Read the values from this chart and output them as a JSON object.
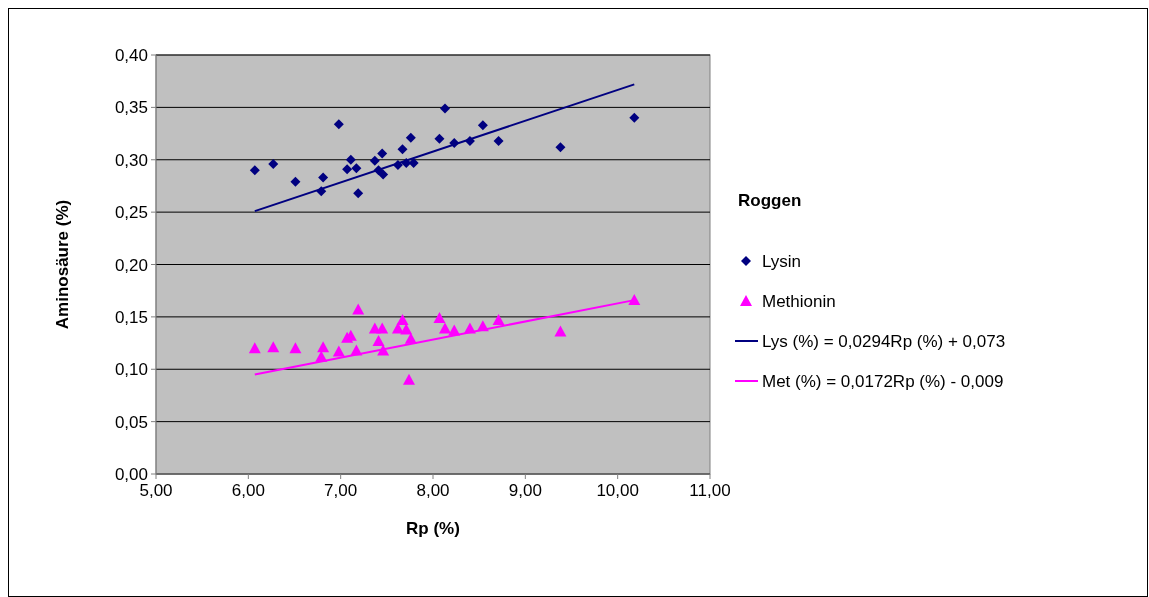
{
  "chart_data": {
    "type": "scatter",
    "xlabel": "Rp (%)",
    "ylabel": "Aminosäure (%)",
    "legend_title": "Roggen",
    "legend": "right",
    "grid": "y",
    "xlim": [
      5,
      11
    ],
    "xticks": [
      {
        "value": 5,
        "label": "5,00"
      },
      {
        "value": 6,
        "label": "6,00"
      },
      {
        "value": 7,
        "label": "7,00"
      },
      {
        "value": 8,
        "label": "8,00"
      },
      {
        "value": 9,
        "label": "9,00"
      },
      {
        "value": 10,
        "label": "10,00"
      },
      {
        "value": 11,
        "label": "11,00"
      }
    ],
    "ylim": [
      0,
      0.4
    ],
    "yticks": [
      {
        "value": 0,
        "label": "0,00"
      },
      {
        "value": 0.05,
        "label": "0,05"
      },
      {
        "value": 0.1,
        "label": "0,10"
      },
      {
        "value": 0.15,
        "label": "0,15"
      },
      {
        "value": 0.2,
        "label": "0,20"
      },
      {
        "value": 0.25,
        "label": "0,25"
      },
      {
        "value": 0.3,
        "label": "0,30"
      },
      {
        "value": 0.35,
        "label": "0,35"
      },
      {
        "value": 0.4,
        "label": "0,40"
      }
    ],
    "series": [
      {
        "name": "Lysin",
        "marker": "diamond",
        "color": "#000080",
        "x": [
          6.07,
          6.27,
          6.51,
          6.79,
          6.81,
          6.98,
          7.07,
          7.11,
          7.17,
          7.19,
          7.37,
          7.41,
          7.45,
          7.46,
          7.62,
          7.67,
          7.71,
          7.76,
          7.79,
          8.07,
          8.13,
          8.23,
          8.4,
          8.54,
          8.71,
          9.38,
          10.18
        ],
        "values": [
          0.29,
          0.296,
          0.279,
          0.27,
          0.283,
          0.334,
          0.291,
          0.3,
          0.292,
          0.268,
          0.299,
          0.29,
          0.306,
          0.286,
          0.295,
          0.31,
          0.297,
          0.321,
          0.297,
          0.32,
          0.349,
          0.316,
          0.318,
          0.333,
          0.318,
          0.312,
          0.34
        ]
      },
      {
        "name": "Methionin",
        "marker": "triangle",
        "color": "#ff00ff",
        "x": [
          6.07,
          6.27,
          6.51,
          6.81,
          6.79,
          6.98,
          7.07,
          7.11,
          7.17,
          7.19,
          7.37,
          7.41,
          7.45,
          7.46,
          7.62,
          7.67,
          7.71,
          7.76,
          7.74,
          8.07,
          8.13,
          8.23,
          8.4,
          8.54,
          8.71,
          9.38,
          10.18
        ],
        "values": [
          0.12,
          0.121,
          0.12,
          0.121,
          0.112,
          0.117,
          0.13,
          0.132,
          0.118,
          0.157,
          0.139,
          0.127,
          0.139,
          0.118,
          0.139,
          0.147,
          0.138,
          0.129,
          0.09,
          0.149,
          0.139,
          0.137,
          0.139,
          0.141,
          0.147,
          0.136,
          0.166
        ]
      },
      {
        "name": "Lys (%) = 0,0294Rp (%) + 0,073",
        "type": "line",
        "marker": "none",
        "color": "#000080",
        "x": [
          6.07,
          10.18
        ],
        "values": [
          0.251,
          0.372
        ]
      },
      {
        "name": "Met (%) = 0,0172Rp (%) - 0,009",
        "type": "line",
        "marker": "none",
        "color": "#ff00ff",
        "x": [
          6.07,
          10.18
        ],
        "values": [
          0.095,
          0.166
        ]
      }
    ]
  }
}
